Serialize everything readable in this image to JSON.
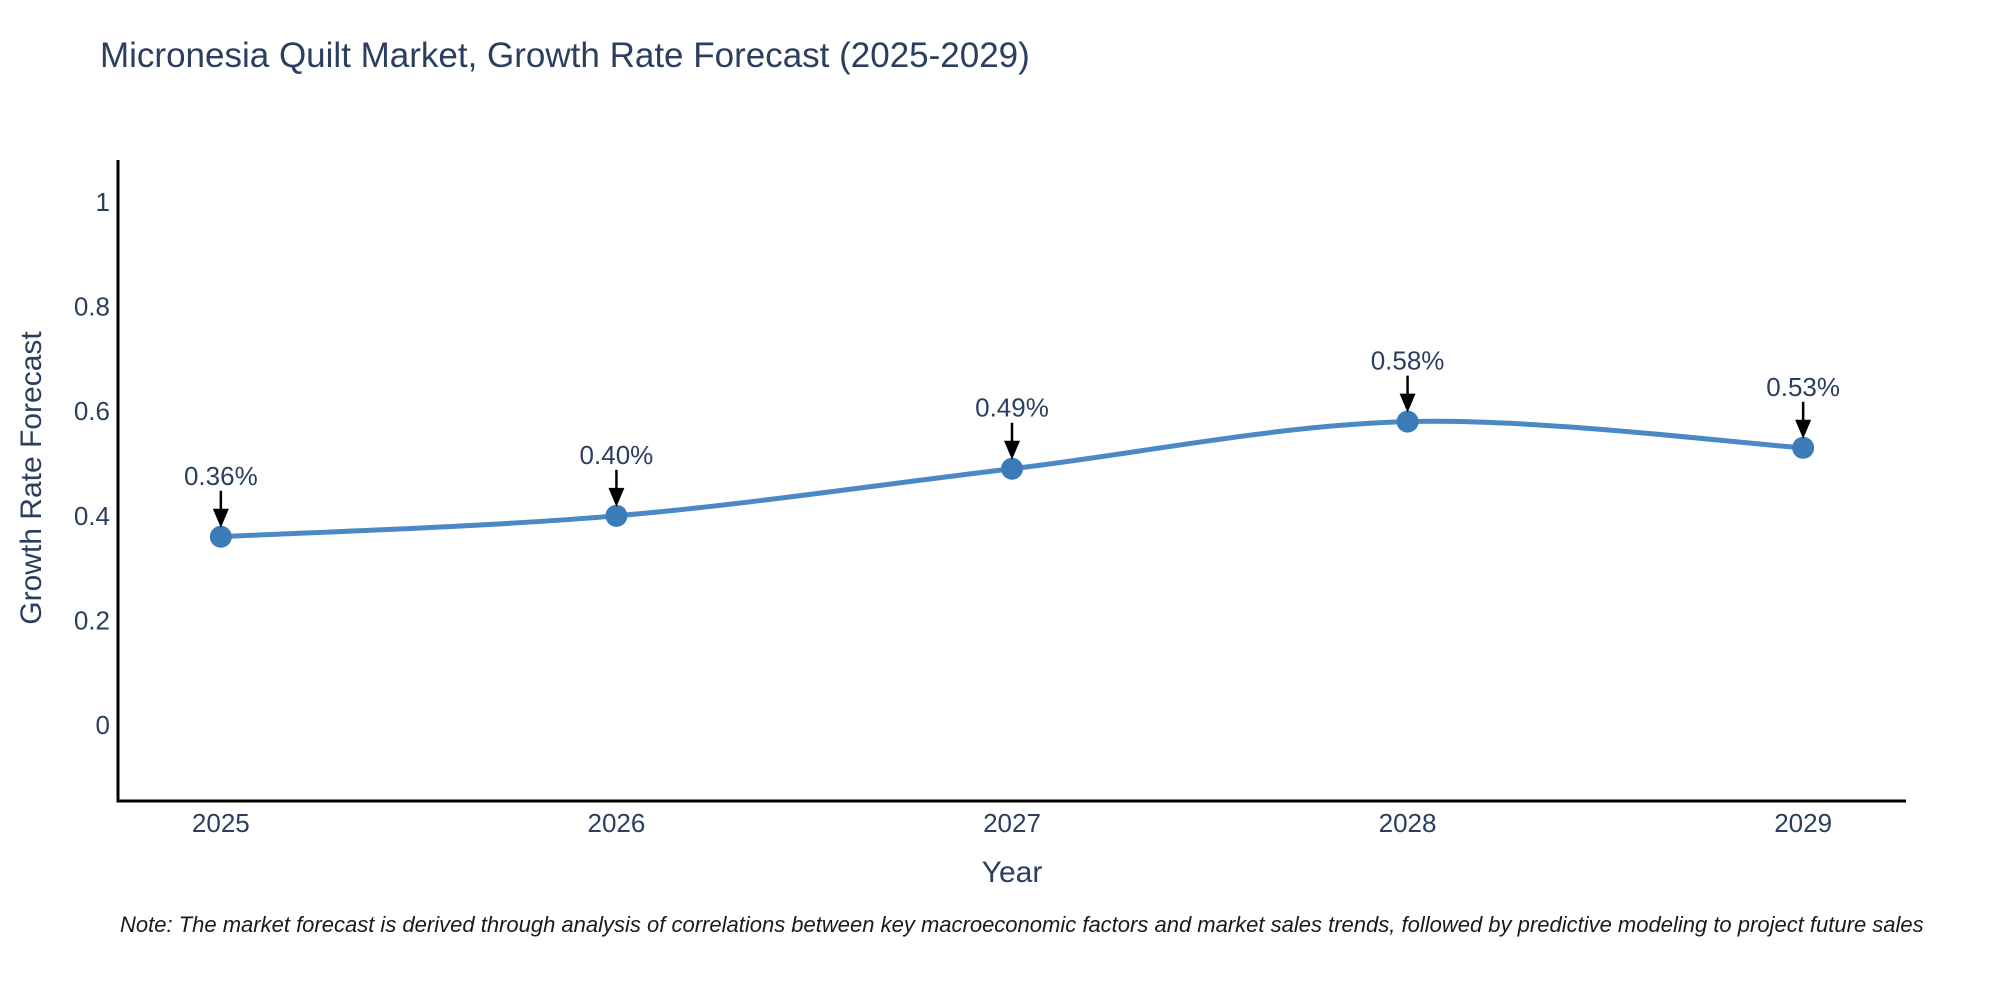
{
  "chart_data": {
    "type": "line",
    "title": "Micronesia Quilt Market, Growth Rate Forecast (2025-2029)",
    "xlabel": "Year",
    "ylabel": "Growth Rate Forecast",
    "categories": [
      "2025",
      "2026",
      "2027",
      "2028",
      "2029"
    ],
    "series": [
      {
        "name": "Growth Rate Forecast",
        "values": [
          0.36,
          0.4,
          0.49,
          0.58,
          0.53
        ],
        "point_labels": [
          "0.36%",
          "0.40%",
          "0.49%",
          "0.58%",
          "0.53%"
        ]
      }
    ],
    "yticks": [
      0,
      0.2,
      0.4,
      0.6,
      0.8,
      1
    ],
    "ytick_labels": [
      "0",
      "0.2",
      "0.4",
      "0.6",
      "0.8",
      "1"
    ],
    "x_range": [
      -0.26,
      4.26
    ],
    "y_range": [
      -0.145,
      1.08
    ],
    "grid": false,
    "legend": false,
    "line_shape": "spline",
    "annotations_have_arrows": true,
    "colors": {
      "line": "#4a89c4",
      "marker": "#3b7bb8",
      "axis": "#000000",
      "tick_text": "#2a3f5f",
      "annotation_text": "#2a3f5f",
      "annotation_arrow": "#000000",
      "background": "#ffffff"
    }
  },
  "note": {
    "text": "Note: The market forecast is derived through analysis of correlations between key macroeconomic factors and market sales trends, followed by predictive modeling to project future sales"
  }
}
